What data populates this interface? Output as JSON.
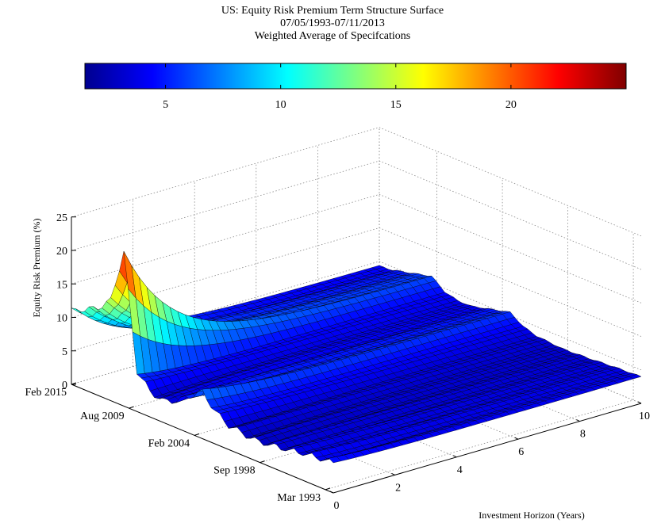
{
  "figure": {
    "title_lines": [
      "US: Equity Risk Premium Term Structure Surface",
      "07/05/1993-07/11/2013",
      "Weighted Average of Specifcations"
    ]
  },
  "colorbar": {
    "colormap": "jet",
    "range": [
      1.5,
      25
    ],
    "ticks": [
      "5",
      "10",
      "15",
      "20"
    ],
    "tick_values": [
      5,
      10,
      15,
      20
    ],
    "colors": [
      "#00008f",
      "#0000ff",
      "#00ffff",
      "#ffff00",
      "#ff0000",
      "#800000"
    ]
  },
  "chart_data": {
    "type": "surface",
    "title": "US: Equity Risk Premium Term Structure Surface",
    "subtitle": [
      "07/05/1993-07/11/2013",
      "Weighted Average of Specifcations"
    ],
    "xlabel": "Investment Horizon (Years)",
    "ylabel": "",
    "zlabel": "Equity Risk Premium (%)",
    "xlim": [
      0,
      10
    ],
    "zlim": [
      0,
      25
    ],
    "x_ticks": [
      "0",
      "2",
      "4",
      "6",
      "8",
      "10"
    ],
    "x_tick_values": [
      0,
      2,
      4,
      6,
      8,
      10
    ],
    "y_ticks": [
      "Mar 1993",
      "Sep 1998",
      "Feb 2004",
      "Aug 2009",
      "Feb 2015"
    ],
    "z_ticks": [
      "0",
      "5",
      "10",
      "15",
      "20",
      "25"
    ],
    "z_tick_values": [
      0,
      5,
      10,
      15,
      20,
      25
    ],
    "grid": true,
    "series": [
      {
        "date_fraction": [
          0.0,
          0.1,
          0.2,
          0.3,
          0.4,
          0.45,
          0.5,
          0.55,
          0.6,
          0.65,
          0.7,
          0.75,
          0.8,
          0.85,
          0.9,
          0.95,
          1.0
        ],
        "short_horizon_erp": [
          4.5,
          4.2,
          3.5,
          3.0,
          3.6,
          4.8,
          7.0,
          5.5,
          4.0,
          3.2,
          3.8,
          6.0,
          23.0,
          15.0,
          13.0,
          12.0,
          11.0
        ],
        "long_horizon_erp": [
          4.0,
          3.8,
          3.5,
          3.3,
          3.6,
          4.2,
          5.5,
          5.0,
          4.5,
          4.0,
          4.0,
          4.5,
          6.0,
          5.5,
          5.0,
          4.5,
          4.3
        ]
      }
    ]
  }
}
